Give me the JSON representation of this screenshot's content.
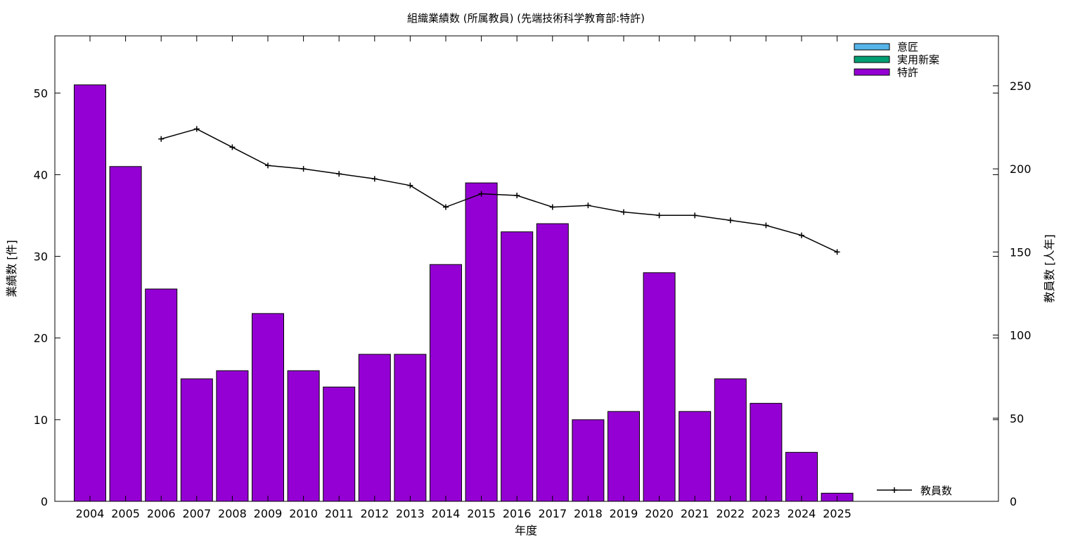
{
  "chart_data": {
    "type": "bar",
    "title": "組織業績数 (所属教員) (先端技術科学教育部:特許)",
    "xlabel": "年度",
    "ylabel": "業績数 [件]",
    "y2label": "教員数 [人年]",
    "categories": [
      "2004",
      "2005",
      "2006",
      "2007",
      "2008",
      "2009",
      "2010",
      "2011",
      "2012",
      "2013",
      "2014",
      "2015",
      "2016",
      "2017",
      "2018",
      "2019",
      "2020",
      "2021",
      "2022",
      "2023",
      "2024",
      "2025"
    ],
    "ylim": [
      0,
      57
    ],
    "y2lim": [
      0,
      280
    ],
    "yticks": [
      0,
      10,
      20,
      30,
      40,
      50
    ],
    "y2ticks": [
      0,
      50,
      100,
      150,
      200,
      250
    ],
    "grid": false,
    "legend_position": "top-right",
    "series": [
      {
        "name": "意匠",
        "kind": "bar",
        "color": "#56b4e9",
        "values": [
          0,
          0,
          0,
          0,
          0,
          0,
          0,
          0,
          0,
          0,
          0,
          0,
          0,
          0,
          0,
          0,
          0,
          0,
          0,
          0,
          0,
          0
        ]
      },
      {
        "name": "実用新案",
        "kind": "bar",
        "color": "#009e73",
        "values": [
          0,
          0,
          0,
          0,
          0,
          0,
          0,
          0,
          0,
          0,
          0,
          0,
          0,
          0,
          0,
          0,
          0,
          0,
          0,
          0,
          0,
          0
        ]
      },
      {
        "name": "特許",
        "kind": "bar",
        "color": "#9400d3",
        "values": [
          51,
          41,
          26,
          15,
          16,
          23,
          16,
          14,
          18,
          18,
          29,
          39,
          33,
          34,
          10,
          11,
          28,
          11,
          15,
          12,
          6,
          1
        ]
      }
    ],
    "line_series": {
      "name": "教員数",
      "color": "#000000",
      "axis": "y2",
      "x": [
        "2006",
        "2007",
        "2008",
        "2009",
        "2010",
        "2011",
        "2012",
        "2013",
        "2014",
        "2015",
        "2016",
        "2017",
        "2018",
        "2019",
        "2020",
        "2021",
        "2022",
        "2023",
        "2024",
        "2025"
      ],
      "values": [
        218,
        224,
        213,
        202,
        200,
        197,
        194,
        190,
        177,
        185,
        184,
        177,
        178,
        174,
        172,
        172,
        169,
        166,
        160,
        150
      ]
    }
  }
}
